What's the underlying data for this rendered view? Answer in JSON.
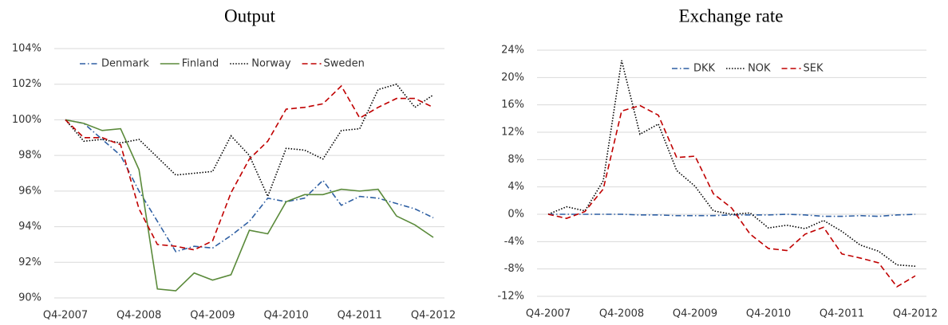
{
  "chart_data": [
    {
      "type": "line",
      "title": "Output",
      "categories": [
        "Q4-2007",
        null,
        null,
        null,
        "Q4-2008",
        null,
        null,
        null,
        "Q4-2009",
        null,
        null,
        null,
        "Q4-2010",
        null,
        null,
        null,
        "Q4-2011",
        null,
        null,
        null,
        "Q4-2012"
      ],
      "ylim": [
        90,
        104
      ],
      "yticks": [
        {
          "value": 90,
          "label": "90%"
        },
        {
          "value": 92,
          "label": "92%"
        },
        {
          "value": 94,
          "label": "94%"
        },
        {
          "value": 96,
          "label": "96%"
        },
        {
          "value": 98,
          "label": "98%"
        },
        {
          "value": 100,
          "label": "100%"
        },
        {
          "value": 102,
          "label": "102%"
        },
        {
          "value": 104,
          "label": "104%"
        }
      ],
      "grid": true,
      "legend": "top",
      "series": [
        {
          "name": "Denmark",
          "color": "#2e5fa3",
          "style": "dashdot",
          "values": [
            100,
            99.8,
            98.9,
            98.0,
            96.0,
            94.3,
            92.6,
            92.9,
            92.8,
            93.5,
            94.3,
            95.6,
            95.4,
            95.6,
            96.6,
            95.2,
            95.7,
            95.6,
            95.3,
            95.0,
            94.5
          ]
        },
        {
          "name": "Finland",
          "color": "#5a8a3a",
          "style": "solid",
          "values": [
            100,
            99.8,
            99.4,
            99.5,
            97.2,
            90.5,
            90.4,
            91.4,
            91.0,
            91.3,
            93.8,
            93.6,
            95.4,
            95.8,
            95.8,
            96.1,
            96.0,
            96.1,
            94.6,
            94.1,
            93.4
          ]
        },
        {
          "name": "Norway",
          "color": "#000000",
          "style": "dotted",
          "values": [
            100,
            98.8,
            98.9,
            98.7,
            98.9,
            97.9,
            96.9,
            97.0,
            97.1,
            99.1,
            98.0,
            95.7,
            98.4,
            98.3,
            97.8,
            99.4,
            99.5,
            101.7,
            102.0,
            100.7,
            101.4
          ]
        },
        {
          "name": "Sweden",
          "color": "#c00000",
          "style": "dashed",
          "values": [
            100,
            99.0,
            99.0,
            98.6,
            95.0,
            93.0,
            92.9,
            92.7,
            93.2,
            95.9,
            97.8,
            98.8,
            100.6,
            100.7,
            100.9,
            101.9,
            100.1,
            100.7,
            101.2,
            101.2,
            100.7
          ]
        }
      ]
    },
    {
      "type": "line",
      "title": "Exchange rate",
      "categories": [
        "Q4-2007",
        null,
        null,
        null,
        "Q4-2008",
        null,
        null,
        null,
        "Q4-2009",
        null,
        null,
        null,
        "Q4-2010",
        null,
        null,
        null,
        "Q4-2011",
        null,
        null,
        null,
        "Q4-2012"
      ],
      "ylim": [
        -12,
        24
      ],
      "yticks": [
        {
          "value": -12,
          "label": "-12%"
        },
        {
          "value": -8,
          "label": "-8%"
        },
        {
          "value": -4,
          "label": "-4%"
        },
        {
          "value": 0,
          "label": "0%"
        },
        {
          "value": 4,
          "label": "4%"
        },
        {
          "value": 8,
          "label": "8%"
        },
        {
          "value": 12,
          "label": "12%"
        },
        {
          "value": 16,
          "label": "16%"
        },
        {
          "value": 20,
          "label": "20%"
        },
        {
          "value": 24,
          "label": "24%"
        }
      ],
      "grid": true,
      "legend": "top",
      "series": [
        {
          "name": "DKK",
          "color": "#2e5fa3",
          "style": "dashdot",
          "values": [
            0,
            0,
            0,
            0,
            0,
            -0.1,
            -0.1,
            -0.2,
            -0.2,
            -0.2,
            -0.1,
            -0.1,
            -0.1,
            0,
            -0.1,
            -0.3,
            -0.3,
            -0.2,
            -0.3,
            -0.1,
            0
          ]
        },
        {
          "name": "NOK",
          "color": "#000000",
          "style": "dotted",
          "values": [
            0,
            1.1,
            0.5,
            4.9,
            22.5,
            11.7,
            13.2,
            6.4,
            4.1,
            0.5,
            0,
            0.2,
            -2.0,
            -1.6,
            -2.1,
            -0.9,
            -2.5,
            -4.5,
            -5.4,
            -7.4,
            -7.6
          ]
        },
        {
          "name": "SEK",
          "color": "#c00000",
          "style": "dashed",
          "values": [
            0,
            -0.6,
            0.4,
            3.7,
            15.1,
            15.9,
            14.5,
            8.3,
            8.5,
            3.0,
            0.9,
            -2.9,
            -5.0,
            -5.3,
            -2.9,
            -1.9,
            -5.8,
            -6.4,
            -7.1,
            -10.6,
            -9.0
          ]
        }
      ]
    }
  ]
}
